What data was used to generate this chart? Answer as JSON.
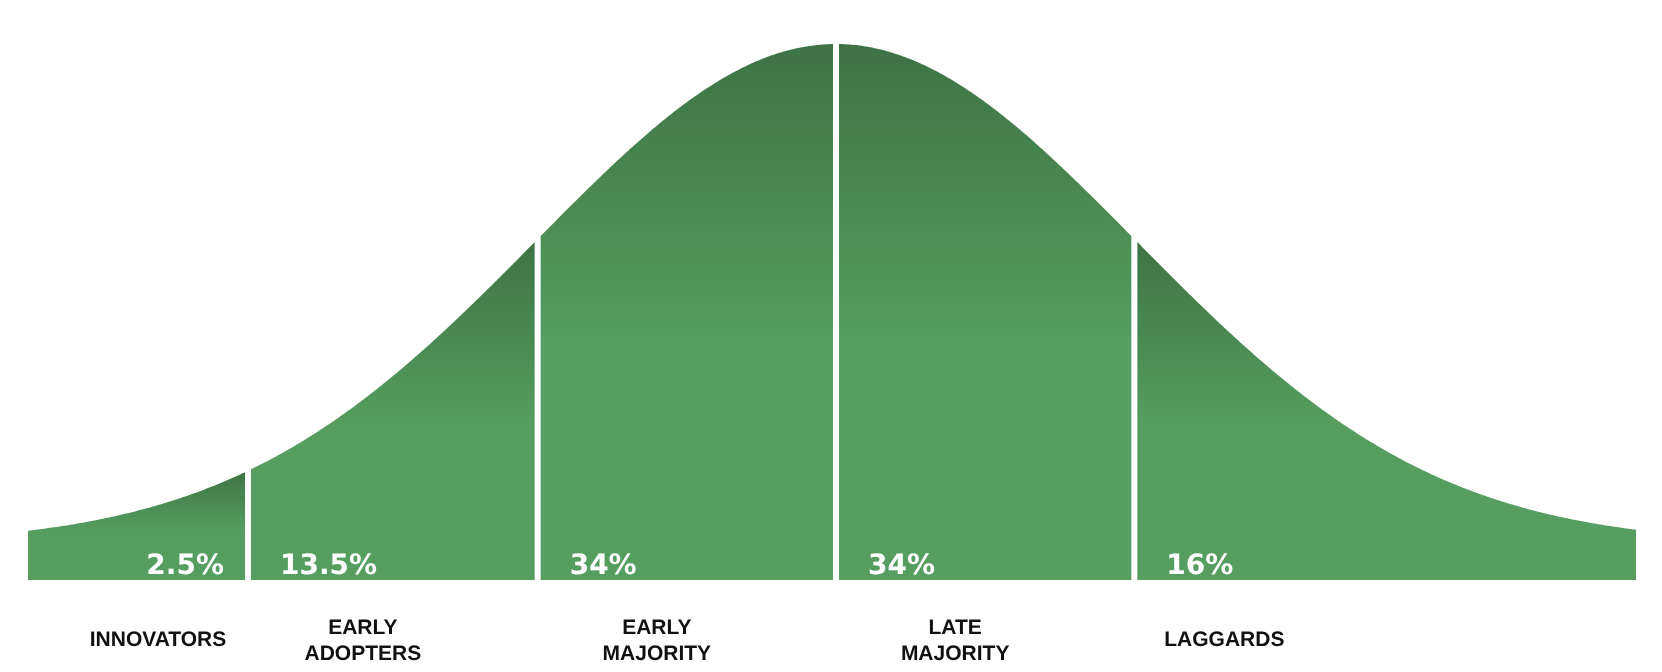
{
  "chart_data": {
    "type": "other",
    "categories": [
      "INNOVATORS",
      "EARLY ADOPTERS",
      "EARLY MAJORITY",
      "LATE MAJORITY",
      "LAGGARDS"
    ],
    "values": [
      2.5,
      13.5,
      34,
      34,
      16
    ],
    "value_labels": [
      "2.5%",
      "13.5%",
      "34%",
      "34%",
      "16%"
    ],
    "color": "#559e5f"
  }
}
